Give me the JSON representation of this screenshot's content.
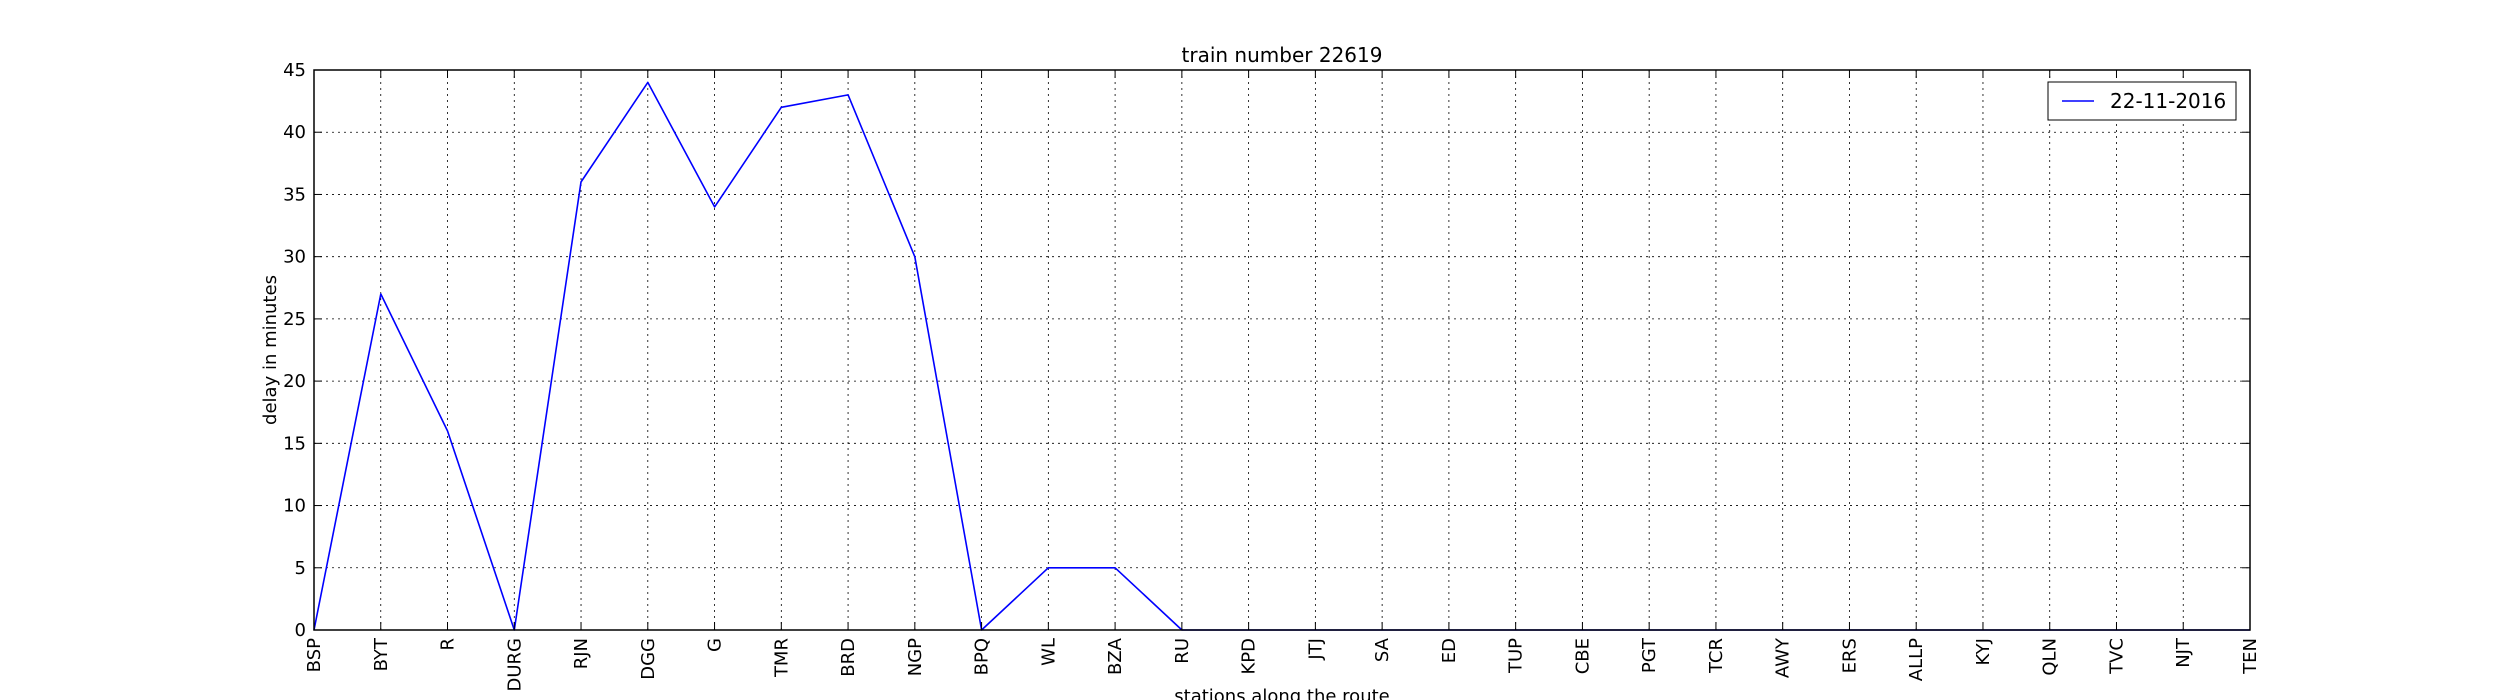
{
  "chart_data": {
    "type": "line",
    "title": "train number 22619",
    "xlabel": "stations along the route",
    "ylabel": "delay in minutes",
    "ylim": [
      0,
      45
    ],
    "yticks": [
      0,
      5,
      10,
      15,
      20,
      25,
      30,
      35,
      40,
      45
    ],
    "grid": true,
    "legend_position": "top-right",
    "categories": [
      "BSP",
      "BYT",
      "R",
      "DURG",
      "RJN",
      "DGG",
      "G",
      "TMR",
      "BRD",
      "NGP",
      "BPQ",
      "WL",
      "BZA",
      "RU",
      "KPD",
      "JTJ",
      "SA",
      "ED",
      "TUP",
      "CBE",
      "PGT",
      "TCR",
      "AWY",
      "ERS",
      "ALLP",
      "KYJ",
      "QLN",
      "TVC",
      "NJT",
      "TEN"
    ],
    "series": [
      {
        "name": "22-11-2016",
        "color": "#0000ff",
        "values": [
          0,
          27,
          16,
          0,
          36,
          44,
          34,
          42,
          43,
          30,
          0,
          5,
          5,
          0,
          0,
          0,
          0,
          0,
          0,
          0,
          0,
          0,
          0,
          0,
          0,
          0,
          0,
          0,
          0,
          0
        ]
      }
    ]
  }
}
